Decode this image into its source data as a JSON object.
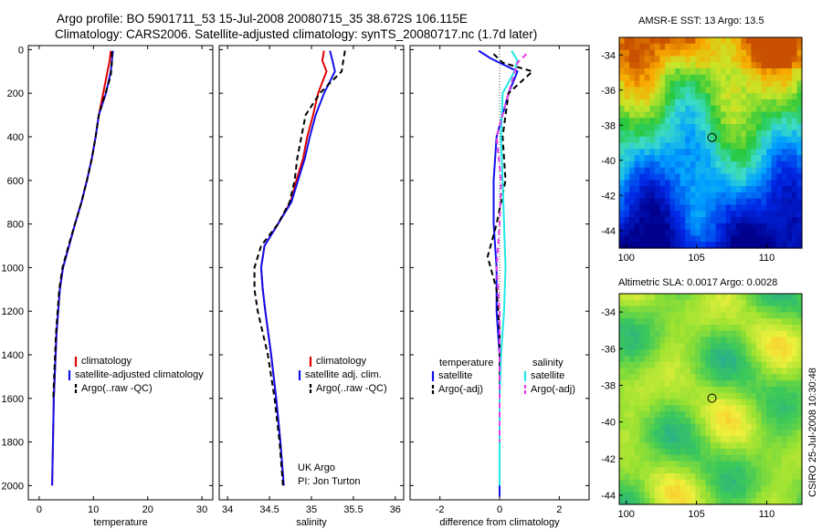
{
  "header": {
    "line1": "Argo profile: BO 5901711_53 15-Jul-2008 20080715_35 38.672S 106.115E",
    "line2": "Climatology: CARS2006. Satellite-adjusted climatology: synTS_20080717.nc (1.7d later)"
  },
  "credit": "CSIRO 25-Jul-2008 10:30:48",
  "colors": {
    "red": "#e00000",
    "blue": "#1010ee",
    "black": "#000000",
    "cyan": "#22e6e6",
    "magenta": "#e43ce4"
  },
  "chart_data": [
    {
      "type": "line",
      "xlabel": "temperature",
      "xlim": [
        -2,
        32
      ],
      "xticks": [
        0,
        10,
        20,
        30
      ],
      "ylim": [
        0,
        2050
      ],
      "yticks": [
        0,
        200,
        400,
        600,
        800,
        1000,
        1200,
        1400,
        1600,
        1800,
        2000
      ],
      "y_reversed": true,
      "legend": [
        "climatology",
        "satellite-adjusted climatology",
        "Argo(..raw -QC)"
      ],
      "series": [
        {
          "name": "climatology",
          "color": "red",
          "style": "solid",
          "x": [
            13.2,
            13.0,
            12.6,
            11.8,
            11.0,
            10.4,
            9.7,
            8.8,
            7.8,
            6.6,
            5.5,
            4.4,
            3.8,
            3.2,
            2.7,
            2.4
          ],
          "y": [
            5,
            50,
            100,
            200,
            300,
            400,
            500,
            600,
            700,
            800,
            900,
            1000,
            1100,
            1300,
            1600,
            2000
          ]
        },
        {
          "name": "satellite-adjusted climatology",
          "color": "blue",
          "style": "solid",
          "x": [
            13.6,
            13.4,
            13.2,
            12.3,
            11.0,
            10.4,
            9.7,
            8.8,
            7.8,
            6.6,
            5.5,
            4.4,
            3.8,
            3.2,
            2.7,
            2.4
          ],
          "y": [
            5,
            50,
            100,
            200,
            300,
            400,
            500,
            600,
            700,
            800,
            900,
            1000,
            1100,
            1300,
            1600,
            2000
          ]
        },
        {
          "name": "Argo(..raw -QC)",
          "color": "black",
          "style": "dashed",
          "x": [
            13.4,
            13.4,
            13.2,
            12.2,
            11.0,
            10.4,
            9.7,
            8.8,
            7.8,
            6.6,
            5.4,
            4.3,
            3.7,
            3.1,
            2.6
          ],
          "y": [
            10,
            60,
            120,
            200,
            300,
            400,
            500,
            600,
            700,
            800,
            900,
            1000,
            1100,
            1300,
            1600
          ]
        }
      ]
    },
    {
      "type": "line",
      "xlabel": "salinity",
      "xlim": [
        33.9,
        36.1
      ],
      "xticks": [
        34,
        34.5,
        35,
        35.5,
        36
      ],
      "ylim": [
        0,
        2050
      ],
      "y_reversed": true,
      "legend": [
        "climatology",
        "satellite adj. clim.",
        "Argo(..raw -QC)"
      ],
      "annotation": [
        "UK Argo",
        "PI: Jon Turton"
      ],
      "series": [
        {
          "name": "climatology",
          "color": "red",
          "style": "solid",
          "x": [
            35.15,
            35.13,
            35.18,
            35.08,
            35.02,
            34.95,
            34.9,
            34.82,
            34.75,
            34.6,
            34.44,
            34.4,
            34.42,
            34.45,
            34.52,
            34.58,
            34.63,
            34.67
          ],
          "y": [
            5,
            50,
            100,
            200,
            300,
            400,
            500,
            600,
            700,
            800,
            900,
            1000,
            1100,
            1200,
            1400,
            1600,
            1800,
            2000
          ]
        },
        {
          "name": "satellite adj. clim.",
          "color": "blue",
          "style": "solid",
          "x": [
            35.22,
            35.25,
            35.28,
            35.15,
            35.05,
            34.98,
            34.92,
            34.84,
            34.76,
            34.6,
            34.44,
            34.4,
            34.42,
            34.45,
            34.52,
            34.58,
            34.63,
            34.67
          ],
          "y": [
            5,
            50,
            100,
            200,
            300,
            400,
            500,
            600,
            700,
            800,
            900,
            1000,
            1100,
            1200,
            1400,
            1600,
            1800,
            2000
          ]
        },
        {
          "name": "Argo(..raw -QC)",
          "color": "black",
          "style": "dashed",
          "x": [
            35.4,
            35.38,
            35.36,
            35.1,
            34.93,
            34.88,
            34.83,
            34.8,
            34.74,
            34.6,
            34.4,
            34.32,
            34.32,
            34.36,
            34.48,
            34.56,
            34.62,
            34.66
          ],
          "y": [
            5,
            50,
            100,
            200,
            300,
            400,
            500,
            600,
            700,
            800,
            900,
            1000,
            1100,
            1200,
            1400,
            1600,
            1800,
            2000
          ]
        }
      ]
    },
    {
      "type": "line",
      "xlabel": "difference from climatology",
      "xlim": [
        -3,
        3
      ],
      "xticks": [
        -2,
        0,
        2
      ],
      "ylim": [
        0,
        2050
      ],
      "y_reversed": true,
      "legend_groups": [
        {
          "title": "temperature",
          "entries": [
            "satellite",
            "Argo(-adj)"
          ]
        },
        {
          "title": "salinity",
          "entries": [
            "satellite",
            "Argo(-adj)"
          ]
        }
      ],
      "series": [
        {
          "name": "temperature satellite",
          "color": "blue",
          "style": "solid",
          "x": [
            -0.7,
            -0.3,
            0.6,
            0.3,
            -0.1,
            -0.2,
            -0.2,
            -0.1,
            -0.1,
            0,
            0,
            0,
            0,
            0
          ],
          "y": [
            5,
            40,
            100,
            200,
            400,
            600,
            800,
            1000,
            1200,
            1400,
            1600,
            1800,
            2000,
            2050
          ]
        },
        {
          "name": "temperature Argo(-adj)",
          "color": "black",
          "style": "dashed",
          "x": [
            -0.2,
            0.1,
            1.1,
            0.3,
            0.1,
            0.2,
            -0.1,
            -0.4,
            -0.1,
            0,
            0,
            0,
            0
          ],
          "y": [
            20,
            60,
            100,
            200,
            400,
            600,
            800,
            950,
            1100,
            1300,
            1600,
            1800,
            2000
          ]
        },
        {
          "name": "salinity satellite",
          "color": "cyan",
          "style": "solid",
          "x": [
            0.4,
            0.6,
            0.5,
            0.1,
            0.05,
            0.1,
            0.15,
            0.2,
            0.15,
            0.05,
            0,
            0,
            0
          ],
          "y": [
            5,
            50,
            100,
            200,
            400,
            600,
            800,
            1000,
            1200,
            1400,
            1600,
            1800,
            2000
          ]
        },
        {
          "name": "salinity Argo(-adj)",
          "color": "magenta",
          "style": "dashed",
          "x": [
            0.9,
            0.6,
            0.3,
            -0.1,
            0.05,
            0,
            -0.1,
            0,
            0,
            0,
            0
          ],
          "y": [
            20,
            60,
            200,
            400,
            600,
            800,
            1000,
            1200,
            1400,
            1600,
            1800
          ]
        }
      ]
    },
    {
      "type": "heatmap",
      "title": "AMSR-E SST: 13 Argo: 13.5",
      "xlim": [
        99.5,
        112.5
      ],
      "ylim": [
        -45,
        -33
      ],
      "xticks": [
        100,
        105,
        110
      ],
      "yticks": [
        -44,
        -42,
        -40,
        -38,
        -36,
        -34
      ],
      "marker": {
        "lon": 106.1,
        "lat": -38.7
      }
    },
    {
      "type": "heatmap",
      "title": "Altimetric SLA: 0.0017 Argo: 0.0028",
      "xlim": [
        99.5,
        112.5
      ],
      "ylim": [
        -44.5,
        -33
      ],
      "xticks": [
        100,
        105,
        110
      ],
      "yticks": [
        -44,
        -42,
        -40,
        -38,
        -36,
        -34
      ],
      "marker": {
        "lon": 106.1,
        "lat": -38.7
      }
    }
  ]
}
